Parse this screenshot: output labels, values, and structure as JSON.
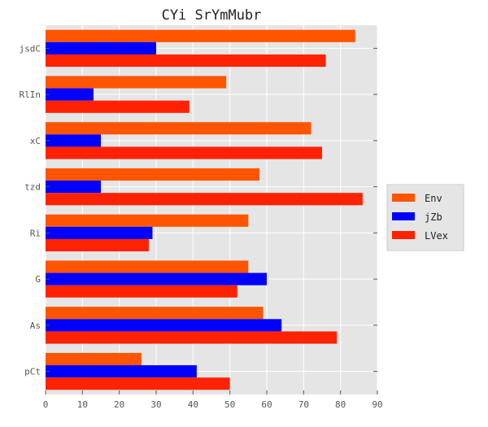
{
  "chart_data": {
    "type": "bar",
    "orientation": "horizontal",
    "title": "CYi SrYmMubr",
    "xlabel": "",
    "ylabel": "",
    "categories": [
      "jsdC",
      "RlIn",
      "xC",
      "tzd",
      "Ri",
      "G",
      "As",
      "pCt"
    ],
    "series": [
      {
        "name": "Env",
        "color": "#ff5500",
        "values": [
          84,
          49,
          72,
          58,
          55,
          55,
          59,
          26
        ]
      },
      {
        "name": "jZb",
        "color": "#0000ff",
        "values": [
          30,
          13,
          15,
          15,
          29,
          60,
          64,
          41
        ]
      },
      {
        "name": "LVex",
        "color": "#ff2200",
        "values": [
          76,
          39,
          75,
          86,
          28,
          52,
          79,
          50
        ]
      }
    ],
    "xlim": [
      0,
      90
    ],
    "xticks": [
      0,
      10,
      20,
      30,
      40,
      50,
      60,
      70,
      80,
      90
    ],
    "grid": true,
    "legend_position": "right-middle"
  }
}
